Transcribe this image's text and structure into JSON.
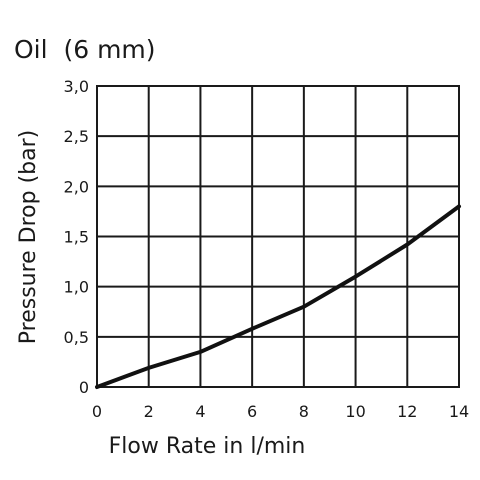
{
  "chart_data": {
    "type": "line",
    "title": "Oil  (6 mm)",
    "xlabel": "Flow Rate in l/min",
    "ylabel": "Pressure Drop (bar)",
    "xlim": [
      0,
      14
    ],
    "ylim": [
      0,
      3.0
    ],
    "x_ticks": [
      "0",
      "2",
      "4",
      "6",
      "8",
      "10",
      "12",
      "14"
    ],
    "y_ticks": [
      "0",
      "0,5",
      "1,0",
      "1,5",
      "2,0",
      "2,5",
      "3,0"
    ],
    "grid": true,
    "series": [
      {
        "x": [
          0,
          2,
          4,
          6,
          8,
          10,
          12,
          14
        ],
        "y": [
          0,
          0.19,
          0.35,
          0.58,
          0.8,
          1.1,
          1.42,
          1.8
        ]
      }
    ],
    "colors": {
      "line": "#111111",
      "grid": "#1a1a1a"
    }
  }
}
